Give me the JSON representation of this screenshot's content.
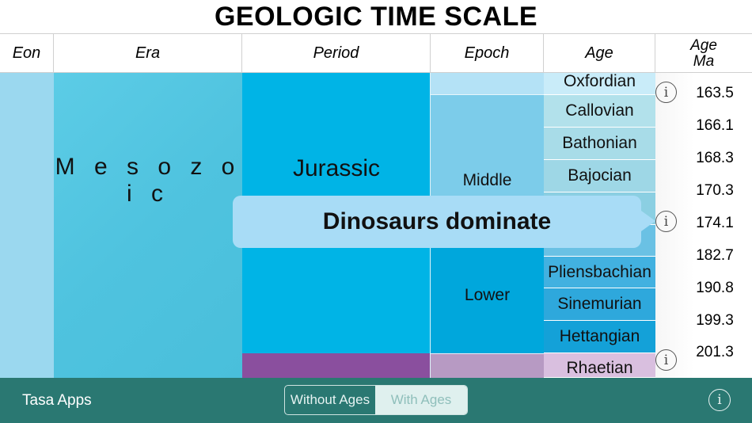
{
  "title": "GEOLOGIC TIME SCALE",
  "headers": {
    "eon": "Eon",
    "era": "Era",
    "period": "Period",
    "epoch": "Epoch",
    "age": "Age",
    "age_ma_line1": "Age",
    "age_ma_line2": "Ma"
  },
  "era": {
    "label": "M e s o z o i c",
    "color": "#4fc3df"
  },
  "periods": {
    "jurassic": {
      "label": "Jurassic",
      "color": "#00b4e6"
    },
    "triassic": {
      "label": "",
      "color": "#8a4f9e"
    }
  },
  "epochs": {
    "upper": {
      "label": "",
      "color": "#b4e2f6"
    },
    "middle": {
      "label": "Middle",
      "color": "#7cccea"
    },
    "lower": {
      "label": "Lower",
      "color": "#00a7dc"
    },
    "late_triassic": {
      "label": "",
      "color": "#b79ac3"
    }
  },
  "ages": [
    {
      "label": "Oxfordian",
      "color": "#c9ecf9"
    },
    {
      "label": "Callovian",
      "color": "#b2e1eb"
    },
    {
      "label": "Bathonian",
      "color": "#a8dce8"
    },
    {
      "label": "Bajocian",
      "color": "#9ed7e6"
    },
    {
      "label": "",
      "color": "#8bcfe2"
    },
    {
      "label": "",
      "color": "#6ac1e4"
    },
    {
      "label": "Pliensbachian",
      "color": "#42b1e0"
    },
    {
      "label": "Sinemurian",
      "color": "#2ea8dc"
    },
    {
      "label": "Hettangian",
      "color": "#14a1d8"
    },
    {
      "label": "Rhaetian",
      "color": "#d9bfdf"
    }
  ],
  "ma_values": [
    "163.5",
    "166.1",
    "168.3",
    "170.3",
    "174.1",
    "182.7",
    "190.8",
    "199.3",
    "201.3"
  ],
  "tooltip": {
    "text": "Dinosaurs dominate"
  },
  "footer": {
    "brand": "Tasa Apps",
    "segment_without": "Without Ages",
    "segment_with": "With Ages",
    "info_glyph": "i"
  },
  "info_glyph": "i",
  "colors": {
    "footer_bg": "#2a7872"
  }
}
